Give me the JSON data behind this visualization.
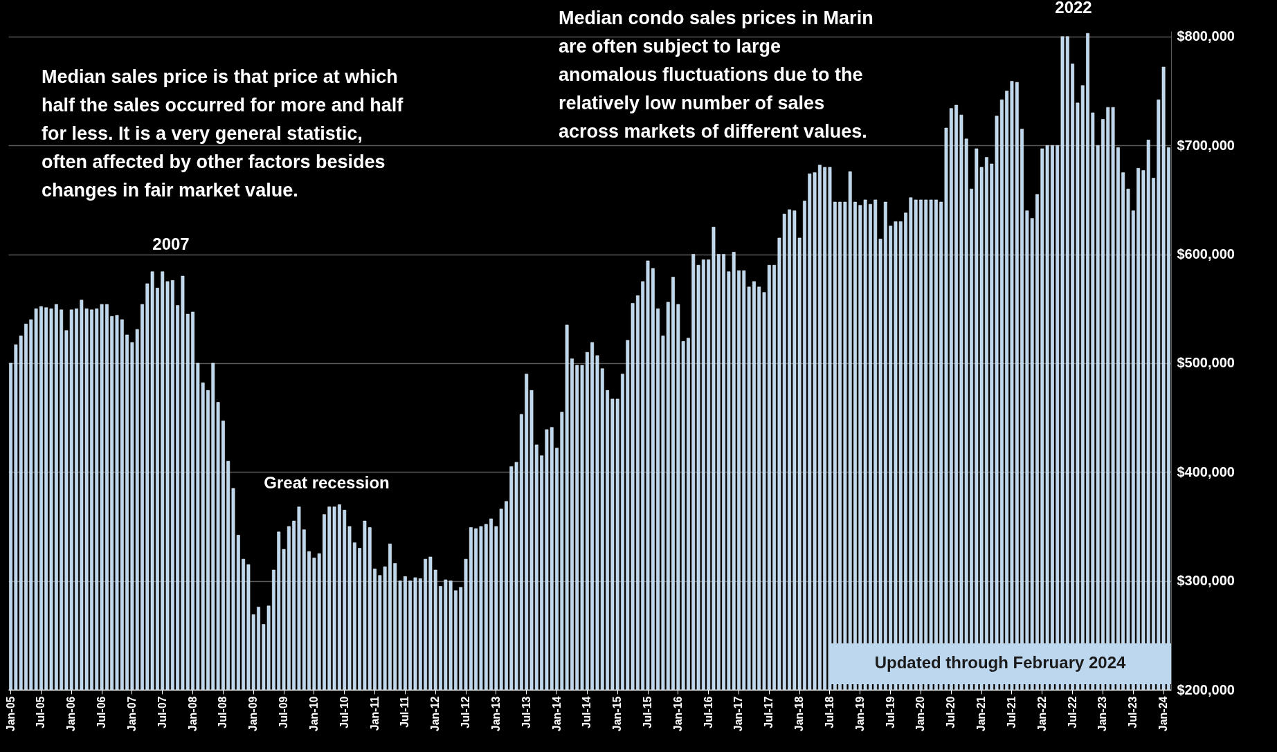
{
  "chart_data": {
    "type": "bar",
    "categories": [
      "Jan-05",
      null,
      null,
      null,
      null,
      null,
      "Jul-05",
      null,
      null,
      null,
      null,
      null,
      "Jan-06",
      null,
      null,
      null,
      null,
      null,
      "Jul-06",
      null,
      null,
      null,
      null,
      null,
      "Jan-07",
      null,
      null,
      null,
      null,
      null,
      "Jul-07",
      null,
      null,
      null,
      null,
      null,
      "Jan-08",
      null,
      null,
      null,
      null,
      null,
      "Jul-08",
      null,
      null,
      null,
      null,
      null,
      "Jan-09",
      null,
      null,
      null,
      null,
      null,
      "Jul-09",
      null,
      null,
      null,
      null,
      null,
      "Jan-10",
      null,
      null,
      null,
      null,
      null,
      "Jul-10",
      null,
      null,
      null,
      null,
      null,
      "Jan-11",
      null,
      null,
      null,
      null,
      null,
      "Jul-11",
      null,
      null,
      null,
      null,
      null,
      "Jan-12",
      null,
      null,
      null,
      null,
      null,
      "Jul-12",
      null,
      null,
      null,
      null,
      null,
      "Jan-13",
      null,
      null,
      null,
      null,
      null,
      "Jul-13",
      null,
      null,
      null,
      null,
      null,
      "Jan-14",
      null,
      null,
      null,
      null,
      null,
      "Jul-14",
      null,
      null,
      null,
      null,
      null,
      "Jan-15",
      null,
      null,
      null,
      null,
      null,
      "Jul-15",
      null,
      null,
      null,
      null,
      null,
      "Jan-16",
      null,
      null,
      null,
      null,
      null,
      "Jul-16",
      null,
      null,
      null,
      null,
      null,
      "Jan-17",
      null,
      null,
      null,
      null,
      null,
      "Jul-17",
      null,
      null,
      null,
      null,
      null,
      "Jan-18",
      null,
      null,
      null,
      null,
      null,
      "Jul-18",
      null,
      null,
      null,
      null,
      null,
      "Jan-19",
      null,
      null,
      null,
      null,
      null,
      "Jul-19",
      null,
      null,
      null,
      null,
      null,
      "Jan-20",
      null,
      null,
      null,
      null,
      null,
      "Jul-20",
      null,
      null,
      null,
      null,
      null,
      "Jan-21",
      null,
      null,
      null,
      null,
      null,
      "Jul-21",
      null,
      null,
      null,
      null,
      null,
      "Jan-22",
      null,
      null,
      null,
      null,
      null,
      "Jul-22",
      null,
      null,
      null,
      null,
      null,
      "Jan-23",
      null,
      null,
      null,
      null,
      null,
      "Jul-23",
      null,
      null,
      null,
      null,
      null,
      "Jan-24",
      null
    ],
    "values": [
      500000,
      517000,
      525000,
      536000,
      540000,
      550000,
      552000,
      551000,
      550000,
      554000,
      549000,
      530000,
      549000,
      550000,
      558000,
      550000,
      549000,
      550000,
      554000,
      554000,
      543000,
      544000,
      540000,
      526000,
      519000,
      531000,
      554000,
      573000,
      584000,
      569000,
      584000,
      575000,
      576000,
      553000,
      580000,
      545000,
      547000,
      500000,
      482000,
      475000,
      500000,
      464000,
      447000,
      410000,
      385000,
      342000,
      320000,
      315000,
      269000,
      276000,
      260000,
      277000,
      310000,
      345000,
      329000,
      350000,
      355000,
      368000,
      347000,
      327000,
      321000,
      325000,
      361000,
      368000,
      368000,
      370000,
      365000,
      350000,
      335000,
      330000,
      355000,
      349000,
      311000,
      305000,
      313000,
      334000,
      316000,
      300000,
      304000,
      300000,
      303000,
      302000,
      320000,
      322000,
      310000,
      295000,
      301000,
      300000,
      291000,
      294000,
      320000,
      349000,
      348000,
      350000,
      352000,
      357000,
      350000,
      366000,
      373000,
      405000,
      409000,
      453000,
      490000,
      475000,
      425000,
      415000,
      439000,
      441000,
      422000,
      455000,
      535000,
      504000,
      498000,
      498000,
      510000,
      519000,
      507000,
      495000,
      475000,
      467000,
      467000,
      490000,
      521000,
      555000,
      562000,
      575000,
      594000,
      587000,
      550000,
      525000,
      556000,
      579000,
      554000,
      520000,
      523000,
      600000,
      590000,
      595000,
      595000,
      625000,
      600000,
      600000,
      584000,
      602000,
      585000,
      585000,
      570000,
      575000,
      570000,
      565000,
      590000,
      590000,
      615000,
      637000,
      641000,
      640000,
      615000,
      649000,
      674000,
      675000,
      682000,
      680000,
      680000,
      648000,
      648000,
      648000,
      676000,
      648000,
      645000,
      650000,
      646000,
      650000,
      614000,
      648000,
      626000,
      630000,
      630000,
      638000,
      652000,
      650000,
      650000,
      650000,
      650000,
      650000,
      648000,
      716000,
      734000,
      737000,
      728000,
      706000,
      660000,
      697000,
      680000,
      689000,
      683000,
      727000,
      742000,
      750000,
      759000,
      758000,
      715000,
      640000,
      633000,
      655000,
      697000,
      700000,
      700000,
      700000,
      800000,
      800000,
      775000,
      739000,
      755000,
      803000,
      730000,
      700000,
      724000,
      735000,
      735000,
      698000,
      675000,
      660000,
      640000,
      679000,
      677000,
      705000,
      670000,
      742000,
      772000,
      698000
    ],
    "color": "#bdd7ee",
    "ylim": [
      200000,
      805000
    ],
    "yticks": [
      {
        "value": 200000,
        "label": "$200,000"
      },
      {
        "value": 300000,
        "label": "$300,000"
      },
      {
        "value": 400000,
        "label": "$400,000"
      },
      {
        "value": 500000,
        "label": "$500,000"
      },
      {
        "value": 600000,
        "label": "$600,000"
      },
      {
        "value": 700000,
        "label": "$700,000"
      },
      {
        "value": 800000,
        "label": "$800,000"
      }
    ],
    "grid": "y",
    "annotations": [
      "Median sales price is that price at which half the sales occurred for more and half for less. It is a very general statistic, often affected by other factors besides changes in fair market value.",
      "Median condo sales prices in Marin are often subject to large anomalous fluctuations due to the relatively low number of sales across markets of different values.",
      "2007",
      "Great recession",
      "2022",
      "Updated through February 2024"
    ]
  }
}
